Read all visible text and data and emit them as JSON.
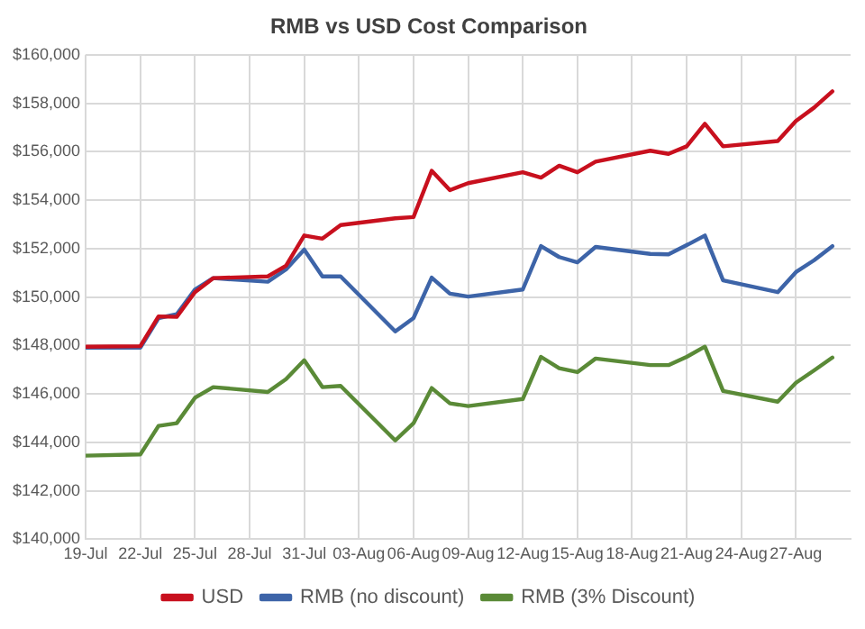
{
  "chart_data": {
    "type": "line",
    "title": "RMB vs USD Cost Comparison",
    "x": [
      "--07-19",
      "--07-22",
      "--07-23",
      "--07-24",
      "--07-25",
      "--07-26",
      "--07-29",
      "--07-30",
      "--07-31",
      "--08-01",
      "--08-02",
      "--08-05",
      "--08-06",
      "--08-07",
      "--08-08",
      "--08-09",
      "--08-12",
      "--08-13",
      "--08-14",
      "--08-15",
      "--08-16",
      "--08-19",
      "--08-20",
      "--08-21",
      "--08-22",
      "--08-23",
      "--08-26",
      "--08-27",
      "--08-28",
      "--08-29"
    ],
    "series": [
      {
        "name": "USD",
        "color": "#c8101e",
        "values": [
          147950,
          147970,
          149200,
          149180,
          150200,
          150780,
          150850,
          151290,
          152540,
          152410,
          152970,
          153250,
          153300,
          155210,
          154410,
          154700,
          155150,
          154930,
          155420,
          155150,
          155590,
          156040,
          155910,
          156220,
          157150,
          156220,
          156440,
          157270,
          157820,
          158490
        ]
      },
      {
        "name": "RMB (no discount)",
        "color": "#3d64a8",
        "values": [
          147910,
          147910,
          149130,
          149290,
          150310,
          150780,
          150630,
          151140,
          151960,
          150850,
          150850,
          148580,
          149130,
          150800,
          150140,
          150020,
          150310,
          152100,
          151650,
          151430,
          152070,
          151780,
          151760,
          152140,
          152540,
          150690,
          150200,
          151030,
          151520,
          152100
        ]
      },
      {
        "name": "RMB (3% Discount)",
        "color": "#5a8a37",
        "values": [
          143450,
          143500,
          144680,
          144790,
          145840,
          146280,
          146080,
          146610,
          147390,
          146280,
          146330,
          144080,
          144790,
          146240,
          145610,
          145500,
          145790,
          147530,
          147060,
          146900,
          147460,
          147190,
          147190,
          147530,
          147950,
          146120,
          145680,
          146460,
          146970,
          147500
        ]
      }
    ],
    "xlim": [
      "--07-19",
      "--08-30"
    ],
    "xticks": [
      {
        "value": "--07-19",
        "label": "19-Jul"
      },
      {
        "value": "--07-22",
        "label": "22-Jul"
      },
      {
        "value": "--07-25",
        "label": "25-Jul"
      },
      {
        "value": "--07-28",
        "label": "28-Jul"
      },
      {
        "value": "--07-31",
        "label": "31-Jul"
      },
      {
        "value": "--08-03",
        "label": "03-Aug"
      },
      {
        "value": "--08-06",
        "label": "06-Aug"
      },
      {
        "value": "--08-09",
        "label": "09-Aug"
      },
      {
        "value": "--08-12",
        "label": "12-Aug"
      },
      {
        "value": "--08-15",
        "label": "15-Aug"
      },
      {
        "value": "--08-18",
        "label": "18-Aug"
      },
      {
        "value": "--08-21",
        "label": "21-Aug"
      },
      {
        "value": "--08-24",
        "label": "24-Aug"
      },
      {
        "value": "--08-27",
        "label": "27-Aug"
      }
    ],
    "ylim": [
      140000,
      160000
    ],
    "yticks": [
      {
        "value": 140000,
        "label": "$140,000"
      },
      {
        "value": 142000,
        "label": "$142,000"
      },
      {
        "value": 144000,
        "label": "$144,000"
      },
      {
        "value": 146000,
        "label": "$146,000"
      },
      {
        "value": 148000,
        "label": "$148,000"
      },
      {
        "value": 150000,
        "label": "$150,000"
      },
      {
        "value": 152000,
        "label": "$152,000"
      },
      {
        "value": 154000,
        "label": "$154,000"
      },
      {
        "value": 156000,
        "label": "$156,000"
      },
      {
        "value": 158000,
        "label": "$158,000"
      },
      {
        "value": 160000,
        "label": "$160,000"
      }
    ],
    "grid": true,
    "legend": "bottom",
    "marker": "none",
    "line_style": "solid"
  }
}
